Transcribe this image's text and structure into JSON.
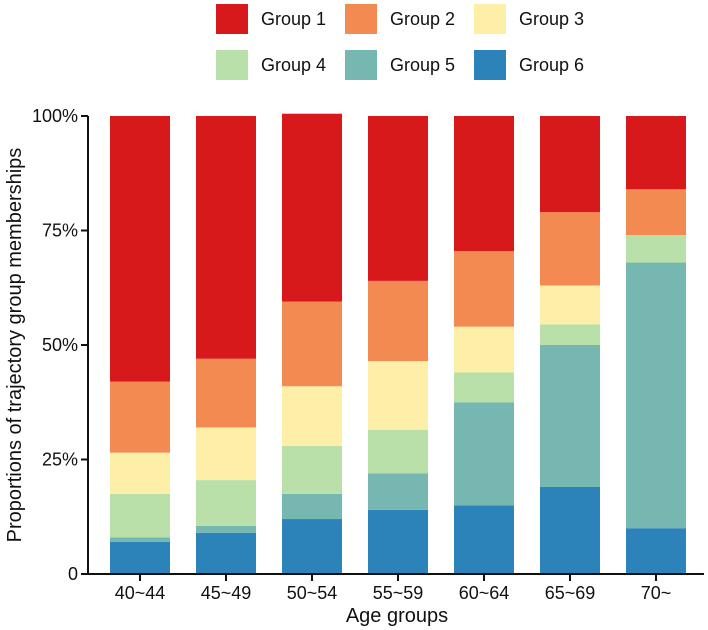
{
  "chart_data": {
    "type": "bar",
    "stacked": true,
    "normalized": true,
    "categories": [
      "40~44",
      "45~49",
      "50~54",
      "55~59",
      "60~64",
      "65~69",
      "70~"
    ],
    "xlabel": "Age groups",
    "ylabel": "Proportions of trajectory group memberships",
    "ylim": [
      0,
      100
    ],
    "yticks": [
      "0",
      "25%",
      "50%",
      "75%",
      "100%"
    ],
    "legend_position": "top",
    "series": [
      {
        "name": "Group 6",
        "color": "#2b83ba",
        "values": [
          7,
          9,
          12,
          14,
          15,
          19,
          10
        ]
      },
      {
        "name": "Group 5",
        "color": "#76b7b2",
        "values": [
          1,
          1.5,
          5.5,
          8,
          22.5,
          31,
          58
        ]
      },
      {
        "name": "Group 4",
        "color": "#b8e0a8",
        "values": [
          9.5,
          10,
          10.5,
          9.5,
          6.5,
          4.5,
          6
        ]
      },
      {
        "name": "Group 3",
        "color": "#fdefa8",
        "values": [
          9,
          11.5,
          13,
          15,
          10,
          8.5,
          0
        ]
      },
      {
        "name": "Group 2",
        "color": "#f28a52",
        "values": [
          15.5,
          15,
          18.5,
          17.5,
          16.5,
          16,
          10
        ]
      },
      {
        "name": "Group 1",
        "color": "#d7191c",
        "values": [
          58,
          53,
          41,
          36,
          29.5,
          21,
          16
        ]
      }
    ],
    "legend_order": [
      "Group 1",
      "Group 2",
      "Group 3",
      "Group 4",
      "Group 5",
      "Group 6"
    ]
  }
}
